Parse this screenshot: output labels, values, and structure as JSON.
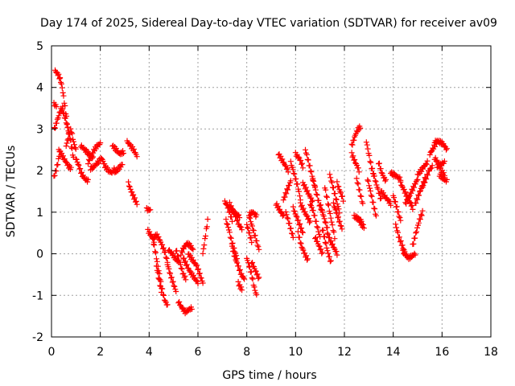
{
  "chart_data": {
    "type": "scatter",
    "title": "Day 174 of 2025, Sidereal Day-to-day VTEC variation (SDTVAR) for receiver av09",
    "xlabel": "GPS time / hours",
    "ylabel": "SDTVAR / TECUs",
    "xlim": [
      0,
      18
    ],
    "ylim": [
      -2,
      5
    ],
    "xticks": [
      "0",
      "2",
      "4",
      "6",
      "8",
      "10",
      "12",
      "14",
      "16",
      "18"
    ],
    "yticks": [
      "-2",
      "-1",
      "0",
      "1",
      "2",
      "3",
      "4",
      "5"
    ],
    "grid": true,
    "marker": "plus",
    "color": "#ff0000",
    "series": [
      {
        "name": "av09",
        "segments": [
          {
            "x0": 0.15,
            "x1": 0.35,
            "ys": [
              4.4,
              4.35,
              4.3,
              4.2
            ]
          },
          {
            "x0": 0.35,
            "x1": 0.7,
            "ys": [
              4.2,
              4.05,
              3.8,
              3.5,
              3.2,
              2.9
            ]
          },
          {
            "x0": 0.1,
            "x1": 0.2,
            "ys": [
              3.6,
              3.55
            ]
          },
          {
            "x0": 0.12,
            "x1": 0.45,
            "ys": [
              3.0,
              3.15,
              3.3,
              3.45,
              3.5
            ]
          },
          {
            "x0": 0.45,
            "x1": 0.9,
            "ys": [
              3.45,
              3.3,
              3.1,
              2.9,
              2.6,
              2.3
            ]
          },
          {
            "x0": 0.1,
            "x1": 0.35,
            "ys": [
              1.85,
              2.0,
              2.2,
              2.45
            ]
          },
          {
            "x0": 0.3,
            "x1": 0.8,
            "ys": [
              2.5,
              2.4,
              2.3,
              2.2,
              2.1,
              2.05
            ]
          },
          {
            "x0": 0.6,
            "x1": 1.0,
            "ys": [
              2.6,
              2.8,
              3.0,
              2.7,
              2.5
            ]
          },
          {
            "x0": 1.0,
            "x1": 1.5,
            "ys": [
              2.3,
              2.1,
              1.9,
              1.8,
              1.75
            ]
          },
          {
            "x0": 1.2,
            "x1": 1.7,
            "ys": [
              2.6,
              2.5,
              2.4,
              2.3
            ]
          },
          {
            "x0": 1.5,
            "x1": 2.0,
            "ys": [
              2.2,
              2.35,
              2.5,
              2.6,
              2.65
            ]
          },
          {
            "x0": 1.6,
            "x1": 2.2,
            "ys": [
              2.05,
              2.1,
              2.2,
              2.3,
              2.1
            ]
          },
          {
            "x0": 2.2,
            "x1": 2.6,
            "ys": [
              2.1,
              2.0,
              1.95,
              2.05
            ]
          },
          {
            "x0": 2.5,
            "x1": 2.95,
            "ys": [
              2.6,
              2.5,
              2.4,
              2.45
            ]
          },
          {
            "x0": 2.6,
            "x1": 2.9,
            "ys": [
              1.95,
              2.05,
              2.15
            ]
          },
          {
            "x0": 3.1,
            "x1": 3.5,
            "ys": [
              2.7,
              2.6,
              2.5,
              2.35
            ]
          },
          {
            "x0": 3.15,
            "x1": 3.5,
            "ys": [
              1.7,
              1.5,
              1.35,
              1.2
            ]
          },
          {
            "x0": 3.9,
            "x1": 4.05,
            "ys": [
              1.07,
              1.05
            ]
          },
          {
            "x0": 3.95,
            "x1": 4.2,
            "ys": [
              0.55,
              0.45,
              0.3
            ]
          },
          {
            "x0": 4.15,
            "x1": 4.75,
            "ys": [
              0.35,
              0.0,
              -0.4,
              -0.8,
              -1.1,
              -1.25
            ]
          },
          {
            "x0": 4.2,
            "x1": 4.75,
            "ys": [
              0.4,
              0.45,
              0.35,
              0.2,
              0.05,
              -0.2
            ]
          },
          {
            "x0": 4.3,
            "x1": 4.5,
            "ys": [
              -0.3,
              -0.6,
              -0.9
            ]
          },
          {
            "x0": 4.75,
            "x1": 5.1,
            "ys": [
              -0.25,
              -0.5,
              -0.7,
              -0.9
            ]
          },
          {
            "x0": 4.8,
            "x1": 5.2,
            "ys": [
              0.1,
              0.0,
              -0.1,
              -0.2
            ]
          },
          {
            "x0": 5.2,
            "x1": 5.75,
            "ys": [
              -1.15,
              -1.3,
              -1.4,
              -1.35,
              -1.3
            ]
          },
          {
            "x0": 5.1,
            "x1": 5.5,
            "ys": [
              0.1,
              -0.1,
              -0.3,
              -0.5,
              -0.6
            ]
          },
          {
            "x0": 5.3,
            "x1": 5.8,
            "ys": [
              0.0,
              0.15,
              0.25,
              0.2,
              0.1
            ]
          },
          {
            "x0": 5.4,
            "x1": 6.0,
            "ys": [
              -0.1,
              -0.25,
              -0.4,
              -0.5,
              -0.6,
              -0.7
            ]
          },
          {
            "x0": 5.6,
            "x1": 6.2,
            "ys": [
              0.0,
              -0.1,
              -0.2,
              -0.3,
              -0.5,
              -0.7
            ]
          },
          {
            "x0": 6.2,
            "x1": 6.4,
            "ys": [
              0.0,
              0.2,
              0.4,
              0.6,
              0.8
            ]
          },
          {
            "x0": 7.1,
            "x1": 7.4,
            "ys": [
              1.25,
              1.15,
              1.0,
              0.8
            ]
          },
          {
            "x0": 7.15,
            "x1": 7.6,
            "ys": [
              0.8,
              0.6,
              0.3,
              0.1,
              -0.1
            ]
          },
          {
            "x0": 7.3,
            "x1": 7.8,
            "ys": [
              1.2,
              1.05,
              0.9,
              0.7,
              0.6
            ]
          },
          {
            "x0": 7.4,
            "x1": 7.9,
            "ys": [
              0.15,
              -0.1,
              -0.3,
              -0.5,
              -0.6
            ]
          },
          {
            "x0": 7.65,
            "x1": 7.8,
            "ys": [
              -0.7,
              -0.8,
              -0.85
            ]
          },
          {
            "x0": 7.35,
            "x1": 7.7,
            "ys": [
              1.1,
              1.0,
              0.95,
              0.9
            ]
          },
          {
            "x0": 8.0,
            "x1": 8.2,
            "ys": [
              0.7,
              0.5,
              0.3
            ]
          },
          {
            "x0": 8.0,
            "x1": 8.4,
            "ys": [
              -0.1,
              -0.3,
              -0.5,
              -0.8,
              -1.0
            ]
          },
          {
            "x0": 8.1,
            "x1": 8.5,
            "ys": [
              0.9,
              0.7,
              0.5,
              0.3,
              0.1
            ]
          },
          {
            "x0": 8.2,
            "x1": 8.5,
            "ys": [
              -0.2,
              -0.4,
              -0.6
            ]
          },
          {
            "x0": 8.1,
            "x1": 8.4,
            "ys": [
              0.95,
              1.0,
              0.9
            ]
          },
          {
            "x0": 9.2,
            "x1": 9.5,
            "ys": [
              1.2,
              1.1,
              1.0,
              0.9
            ]
          },
          {
            "x0": 9.3,
            "x1": 9.7,
            "ys": [
              2.4,
              2.3,
              2.2,
              2.1,
              2.0
            ]
          },
          {
            "x0": 9.5,
            "x1": 9.8,
            "ys": [
              1.3,
              1.45,
              1.6,
              1.75
            ]
          },
          {
            "x0": 9.6,
            "x1": 9.9,
            "ys": [
              1.0,
              0.8,
              0.6,
              0.4
            ]
          },
          {
            "x0": 9.8,
            "x1": 10.2,
            "ys": [
              2.2,
              2.0,
              1.8,
              1.6,
              1.3
            ]
          },
          {
            "x0": 9.9,
            "x1": 10.3,
            "ys": [
              1.1,
              0.9,
              0.7,
              0.5
            ]
          },
          {
            "x0": 10.0,
            "x1": 10.3,
            "ys": [
              2.4,
              2.3,
              2.1
            ]
          },
          {
            "x0": 10.1,
            "x1": 10.5,
            "ys": [
              0.5,
              0.2,
              0.0,
              -0.15
            ]
          },
          {
            "x0": 10.2,
            "x1": 10.6,
            "ys": [
              1.2,
              1.05,
              0.9,
              0.75
            ]
          },
          {
            "x0": 10.3,
            "x1": 10.7,
            "ys": [
              1.7,
              1.55,
              1.4,
              1.25
            ]
          },
          {
            "x0": 10.4,
            "x1": 10.8,
            "ys": [
              2.5,
              2.2,
              1.9,
              1.6
            ]
          },
          {
            "x0": 10.6,
            "x1": 11.0,
            "ys": [
              1.2,
              1.0,
              0.7,
              0.4
            ]
          },
          {
            "x0": 10.7,
            "x1": 11.1,
            "ys": [
              1.8,
              1.5,
              1.2,
              1.0
            ]
          },
          {
            "x0": 10.8,
            "x1": 11.1,
            "ys": [
              0.4,
              0.2,
              0.0
            ]
          },
          {
            "x0": 11.0,
            "x1": 11.3,
            "ys": [
              1.2,
              1.0,
              0.8,
              0.6
            ]
          },
          {
            "x0": 11.1,
            "x1": 11.45,
            "ys": [
              0.6,
              0.3,
              0.0,
              -0.2
            ]
          },
          {
            "x0": 11.2,
            "x1": 11.6,
            "ys": [
              1.6,
              1.3,
              1.0,
              0.7,
              0.4
            ]
          },
          {
            "x0": 11.3,
            "x1": 11.7,
            "ys": [
              0.5,
              0.3,
              0.15,
              0.0
            ]
          },
          {
            "x0": 11.4,
            "x1": 11.8,
            "ys": [
              1.9,
              1.6,
              1.3,
              1.0
            ]
          },
          {
            "x0": 11.55,
            "x1": 11.9,
            "ys": [
              1.2,
              1.0,
              0.8,
              0.6
            ]
          },
          {
            "x0": 11.7,
            "x1": 11.95,
            "ys": [
              1.7,
              1.5,
              1.3
            ]
          },
          {
            "x0": 12.3,
            "x1": 12.65,
            "ys": [
              2.6,
              2.75,
              2.9,
              3.0,
              3.05
            ]
          },
          {
            "x0": 12.3,
            "x1": 12.6,
            "ys": [
              2.4,
              2.2,
              2.0
            ]
          },
          {
            "x0": 12.4,
            "x1": 12.7,
            "ys": [
              0.9,
              0.85,
              0.8
            ]
          },
          {
            "x0": 12.5,
            "x1": 12.75,
            "ys": [
              1.8,
              1.6,
              1.4,
              1.2
            ]
          },
          {
            "x0": 12.6,
            "x1": 12.8,
            "ys": [
              0.8,
              0.7,
              0.65
            ]
          },
          {
            "x0": 12.9,
            "x1": 13.2,
            "ys": [
              2.7,
              2.4,
              2.1,
              1.9
            ]
          },
          {
            "x0": 12.95,
            "x1": 13.3,
            "ys": [
              1.8,
              1.5,
              1.2,
              0.9
            ]
          },
          {
            "x0": 13.2,
            "x1": 13.5,
            "ys": [
              1.9,
              1.7,
              1.5,
              1.3
            ]
          },
          {
            "x0": 13.4,
            "x1": 13.7,
            "ys": [
              2.2,
              2.0,
              1.85,
              1.75
            ]
          },
          {
            "x0": 13.5,
            "x1": 13.9,
            "ys": [
              1.5,
              1.4,
              1.3,
              1.2
            ]
          },
          {
            "x0": 13.9,
            "x1": 14.3,
            "ys": [
              1.95,
              1.9,
              1.85,
              1.8
            ]
          },
          {
            "x0": 14.0,
            "x1": 14.3,
            "ys": [
              1.4,
              1.2,
              1.0,
              0.8
            ]
          },
          {
            "x0": 14.1,
            "x1": 14.5,
            "ys": [
              0.7,
              0.4,
              0.2,
              0.0
            ]
          },
          {
            "x0": 14.3,
            "x1": 14.8,
            "ys": [
              1.7,
              1.5,
              1.3,
              1.1
            ]
          },
          {
            "x0": 14.4,
            "x1": 14.9,
            "ys": [
              0.05,
              -0.05,
              -0.1,
              -0.05,
              0.0
            ]
          },
          {
            "x0": 14.5,
            "x1": 15.0,
            "ys": [
              1.2,
              1.35,
              1.5,
              1.65,
              1.8
            ]
          },
          {
            "x0": 14.8,
            "x1": 15.2,
            "ys": [
              0.2,
              0.5,
              0.8,
              1.0
            ]
          },
          {
            "x0": 14.9,
            "x1": 15.3,
            "ys": [
              1.2,
              1.4,
              1.6,
              1.8
            ]
          },
          {
            "x0": 15.0,
            "x1": 15.4,
            "ys": [
              1.9,
              2.0,
              2.1,
              2.2
            ]
          },
          {
            "x0": 15.2,
            "x1": 15.6,
            "ys": [
              1.6,
              1.8,
              2.0,
              2.1
            ]
          },
          {
            "x0": 15.5,
            "x1": 15.8,
            "ys": [
              2.4,
              2.55,
              2.7
            ]
          },
          {
            "x0": 15.7,
            "x1": 16.2,
            "ys": [
              2.7,
              2.7,
              2.65,
              2.5
            ]
          },
          {
            "x0": 15.7,
            "x1": 16.1,
            "ys": [
              2.3,
              2.2,
              2.0,
              1.9
            ]
          },
          {
            "x0": 15.9,
            "x1": 16.2,
            "ys": [
              1.9,
              1.8,
              1.75
            ]
          },
          {
            "x0": 15.8,
            "x1": 16.1,
            "ys": [
              2.1,
              2.15,
              2.2
            ]
          }
        ]
      }
    ]
  }
}
